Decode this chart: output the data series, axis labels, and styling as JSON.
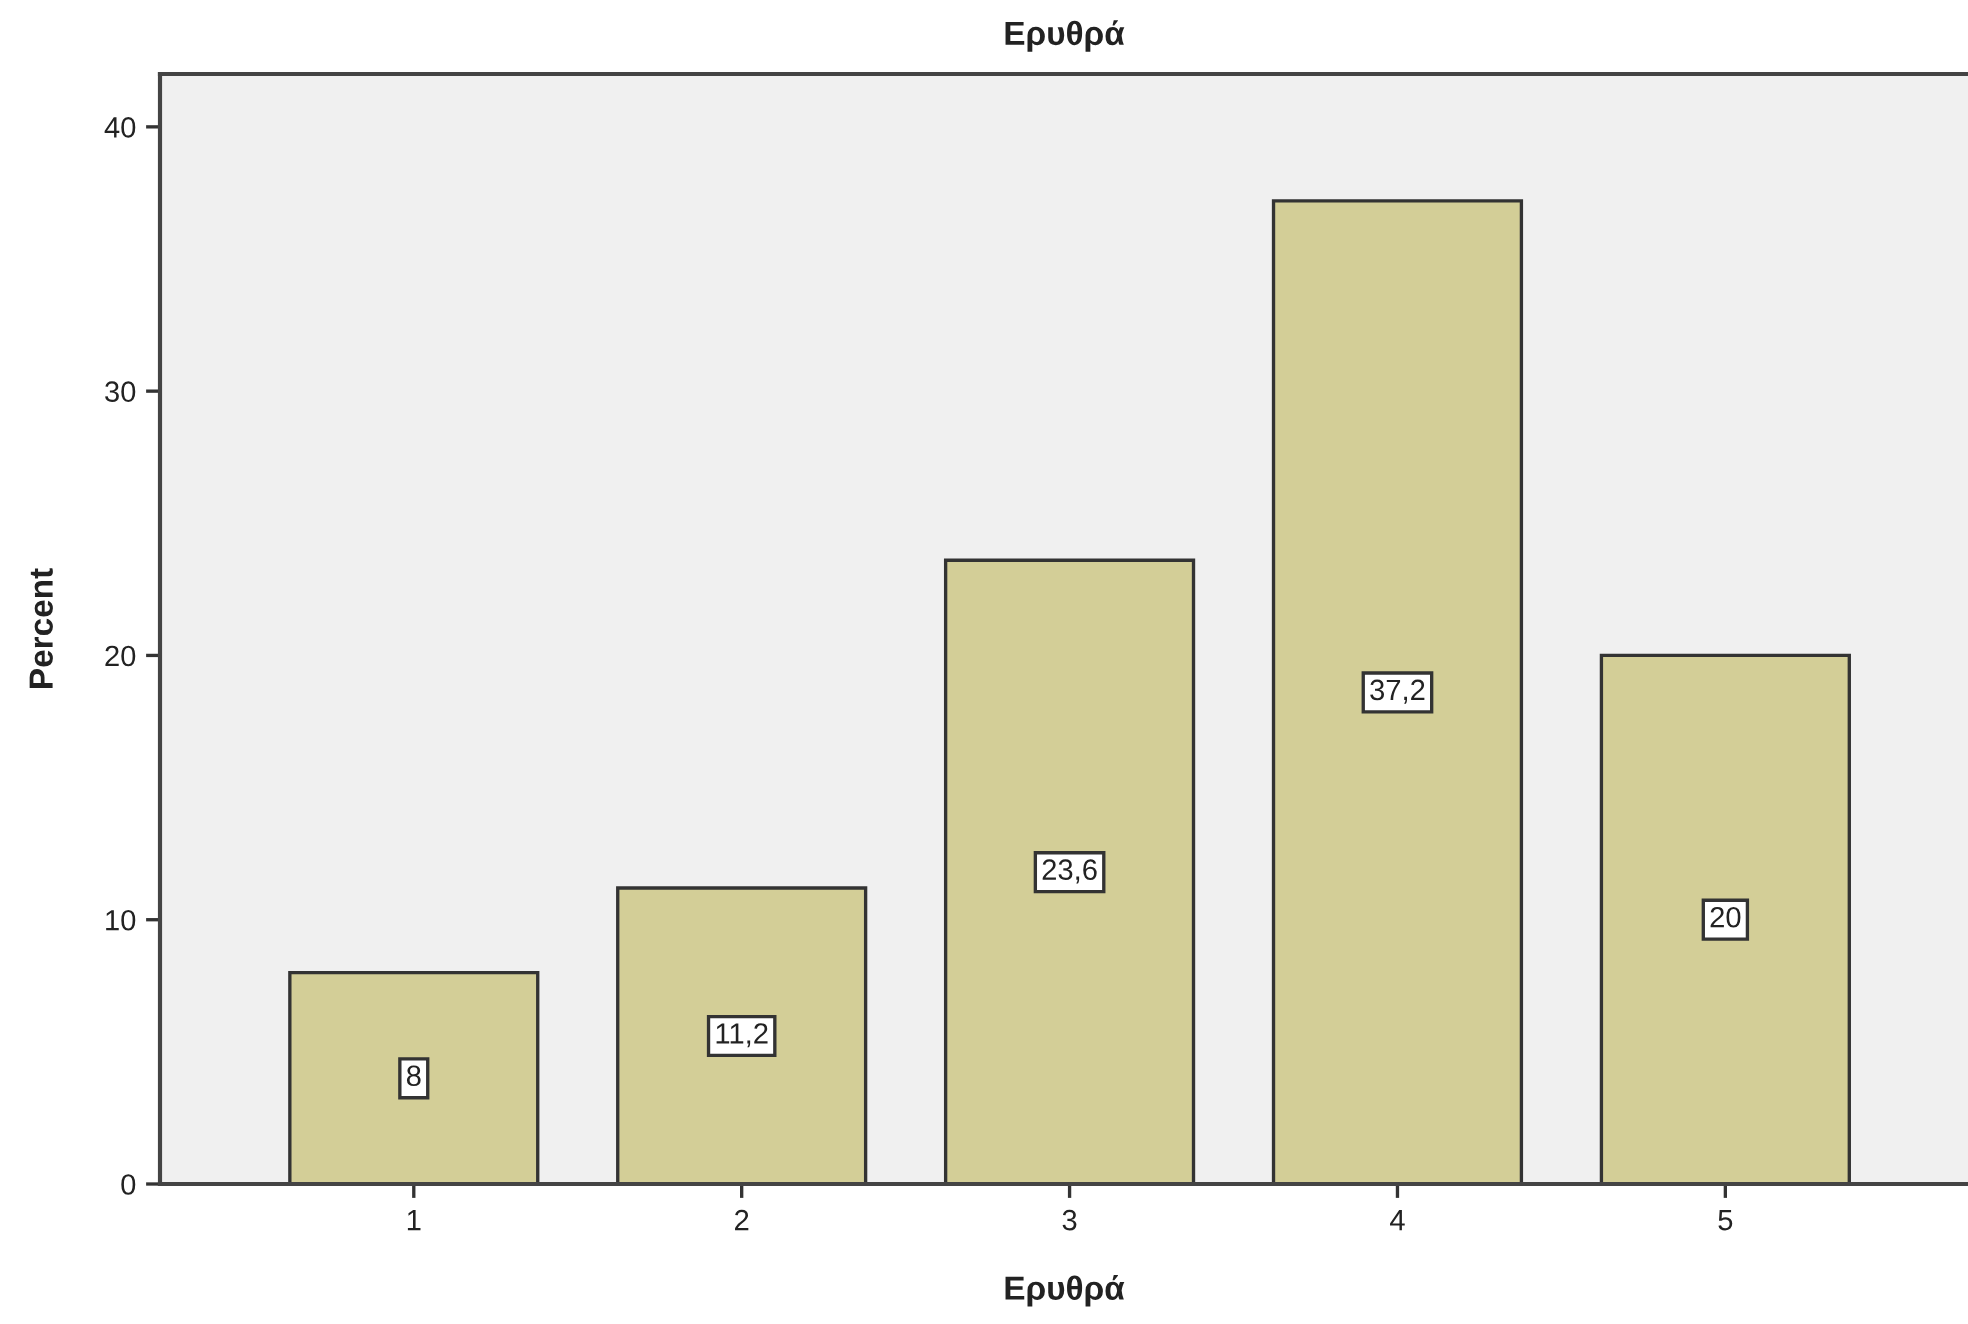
{
  "chart_data": {
    "type": "bar",
    "title": "Ερυθρά",
    "xlabel": "Ερυθρά",
    "ylabel": "Percent",
    "categories": [
      "1",
      "2",
      "3",
      "4",
      "5"
    ],
    "values": [
      8,
      11.2,
      23.6,
      37.2,
      20
    ],
    "color": "#d3ce97",
    "value_labels": [
      "8",
      "11,2",
      "23,6",
      "37,2",
      "20"
    ],
    "ylim": [
      0,
      42
    ],
    "yticks": [
      0,
      10,
      20,
      30,
      40
    ]
  }
}
